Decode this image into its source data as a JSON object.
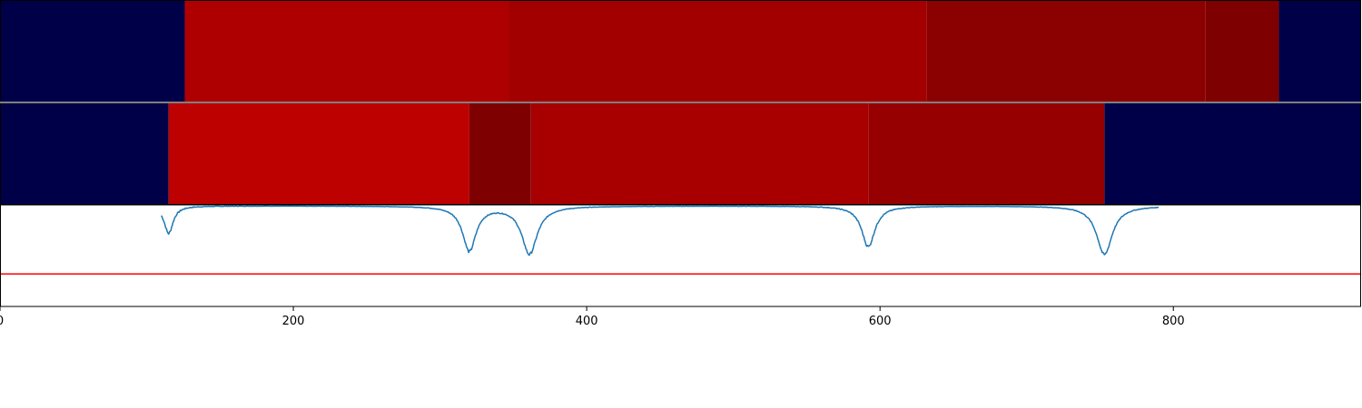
{
  "chart_data": [
    {
      "type": "heatmap",
      "panel": "track-1",
      "xlim": [
        0,
        928
      ],
      "segments": [
        {
          "start": 0,
          "end": 126,
          "color": "#000048"
        },
        {
          "start": 126,
          "end": 347,
          "color": "#ae0000"
        },
        {
          "start": 347,
          "end": 632,
          "color": "#a20000"
        },
        {
          "start": 632,
          "end": 822,
          "color": "#8b0000"
        },
        {
          "start": 822,
          "end": 872,
          "color": "#7e0000"
        },
        {
          "start": 872,
          "end": 928,
          "color": "#000048"
        }
      ]
    },
    {
      "type": "heatmap",
      "panel": "track-2",
      "xlim": [
        0,
        928
      ],
      "segments": [
        {
          "start": 0,
          "end": 115,
          "color": "#000048"
        },
        {
          "start": 115,
          "end": 320,
          "color": "#bd0000"
        },
        {
          "start": 320,
          "end": 362,
          "color": "#7e0000"
        },
        {
          "start": 362,
          "end": 592,
          "color": "#a80000"
        },
        {
          "start": 592,
          "end": 753,
          "color": "#960000"
        },
        {
          "start": 753,
          "end": 928,
          "color": "#000048"
        }
      ]
    },
    {
      "type": "line",
      "panel": "signal",
      "xlim": [
        0,
        928
      ],
      "ylim": [
        -1.0,
        0.0
      ],
      "threshold": -0.68,
      "threshold_color": "#ff0000",
      "line_color": "#1f77b4",
      "baseline": -0.01,
      "dips": [
        {
          "x": 115,
          "y": -0.28,
          "width": 4
        },
        {
          "x": 320,
          "y": -0.45,
          "width": 6
        },
        {
          "x": 361,
          "y": -0.48,
          "width": 7
        },
        {
          "x": 592,
          "y": -0.41,
          "width": 6
        },
        {
          "x": 753,
          "y": -0.49,
          "width": 7
        }
      ],
      "xticks": [
        0,
        200,
        400,
        600,
        800
      ],
      "xticklabels": [
        "0",
        "200",
        "400",
        "600",
        "800"
      ],
      "grid": false
    }
  ]
}
